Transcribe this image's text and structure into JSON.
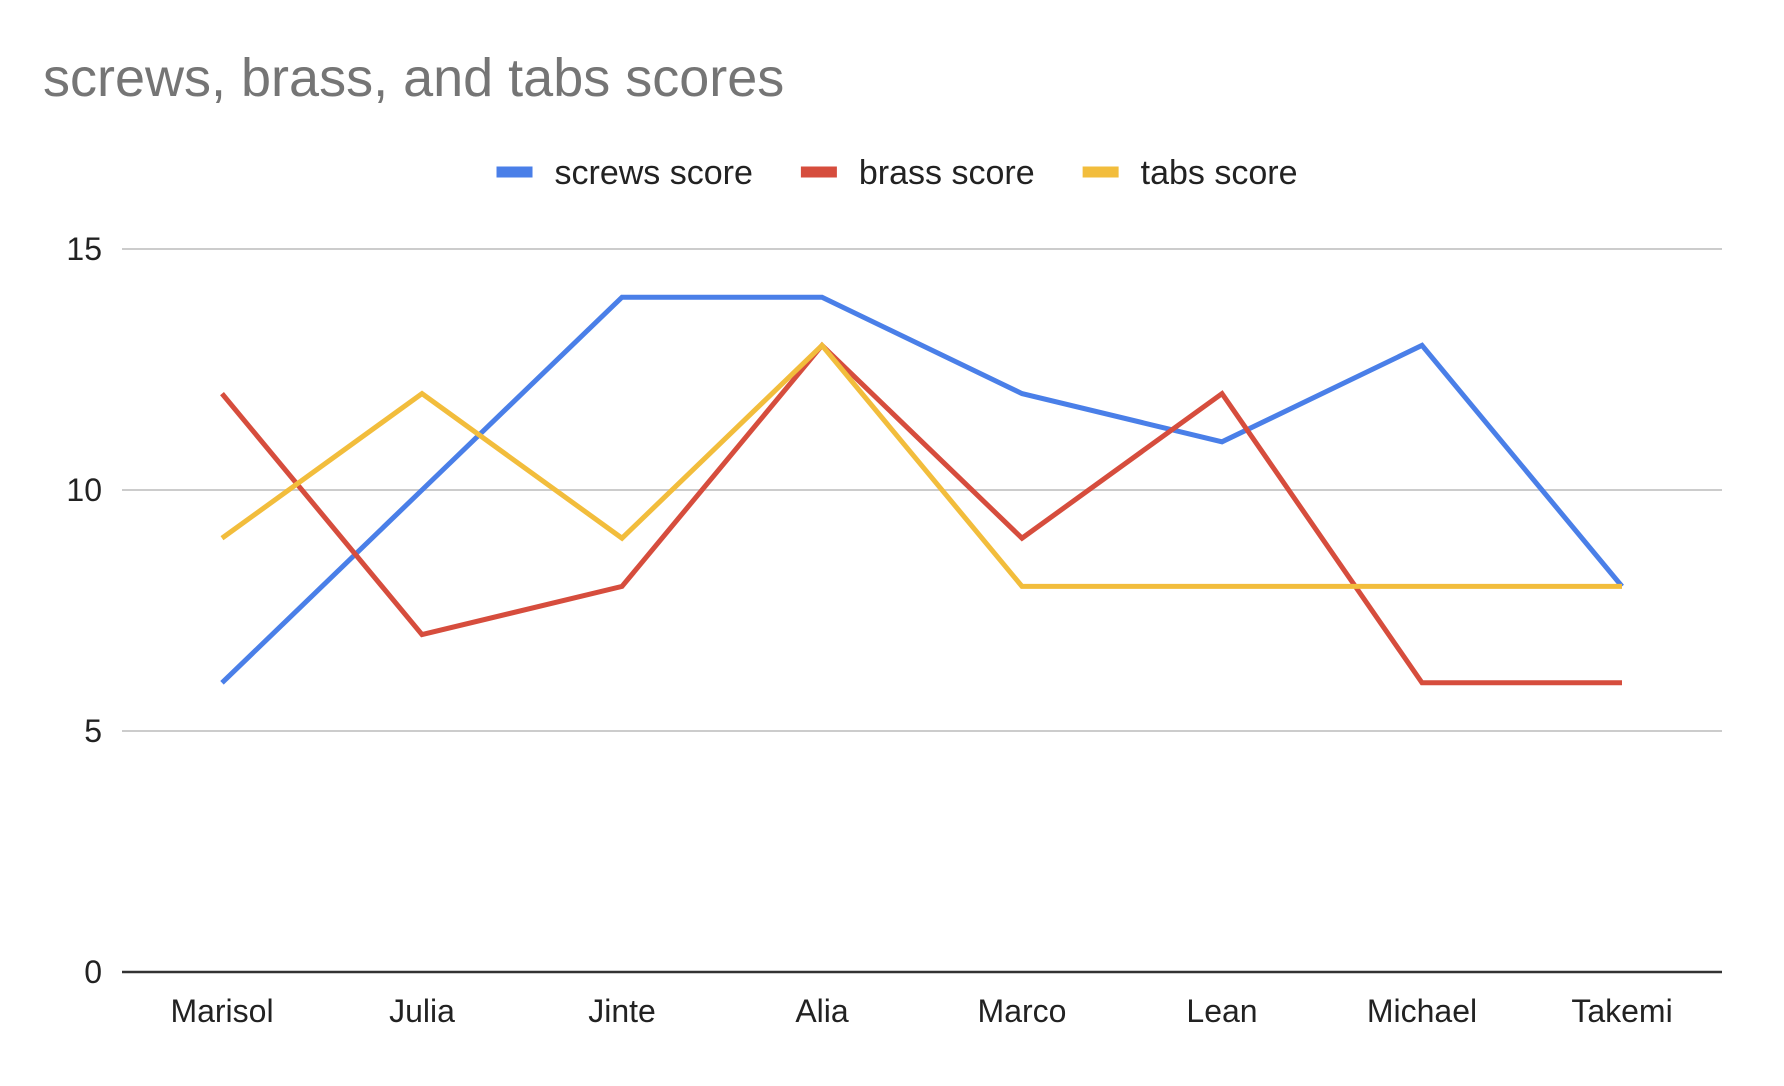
{
  "chart_data": {
    "type": "line",
    "title": "screws, brass, and tabs scores",
    "xlabel": "",
    "ylabel": "",
    "categories": [
      "Marisol",
      "Julia",
      "Jinte",
      "Alia",
      "Marco",
      "Lean",
      "Michael",
      "Takemi"
    ],
    "series": [
      {
        "name": "screws score",
        "color": "#4a7fe8",
        "values": [
          6,
          10,
          14,
          14,
          12,
          11,
          13,
          8
        ]
      },
      {
        "name": "brass score",
        "color": "#d64d3d",
        "values": [
          12,
          7,
          8,
          13,
          9,
          12,
          6,
          6
        ]
      },
      {
        "name": "tabs score",
        "color": "#f2bd3c",
        "values": [
          9,
          12,
          9,
          13,
          8,
          8,
          8,
          8
        ]
      }
    ],
    "ylim": [
      0,
      15
    ],
    "yticks": [
      0,
      5,
      10,
      15
    ],
    "grid": true,
    "legend_position": "top-center"
  }
}
